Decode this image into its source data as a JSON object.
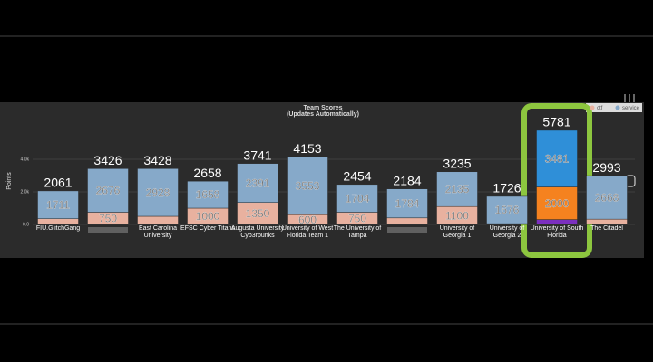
{
  "chart_data": {
    "type": "stacked_bar",
    "title": "Team Scores",
    "subtitle": "(Updates Automatically)",
    "y_label": "Points",
    "categories": [
      "FIU.GlitchGang",
      null,
      "East Carolina University",
      "EFSC Cyber Titans",
      "Augusta University Cyb3rpunks",
      "University of West Florida Team 1",
      "The University of Tampa",
      null,
      "University of Georgia 1",
      "University of Georgia 2",
      "University of South Florida",
      "The Citadel"
    ],
    "series": [
      {
        "name": null,
        "color": "#7b2fbf",
        "values": [
          null,
          null,
          null,
          null,
          null,
          null,
          null,
          null,
          null,
          null,
          300,
          null
        ]
      },
      {
        "name": "ctf",
        "color": "#e8b19f",
        "values": [
          350,
          750,
          500,
          1000,
          1350,
          600,
          750,
          400,
          1100,
          50,
          2000,
          325
        ]
      },
      {
        "name": "service",
        "color": "#86a9c9",
        "values": [
          1711,
          2676,
          2928,
          1658,
          2391,
          3553,
          1704,
          1784,
          2135,
          1676,
          3481,
          2668
        ]
      }
    ],
    "totals": [
      2061,
      3426,
      3428,
      2658,
      3741,
      4153,
      2454,
      2184,
      3235,
      1726,
      5781,
      2993
    ],
    "highlight": {
      "category": 10,
      "colors": [
        "#7b2fbf",
        "#f5821f",
        "#2f8fd8"
      ],
      "border": "#8dc63f"
    },
    "ylim": [
      0,
      6000
    ],
    "yticks": [
      {
        "value": 0,
        "label": "0.0"
      },
      {
        "value": 2000,
        "label": "2.0k"
      },
      {
        "value": 4000,
        "label": "4.0k"
      }
    ]
  }
}
